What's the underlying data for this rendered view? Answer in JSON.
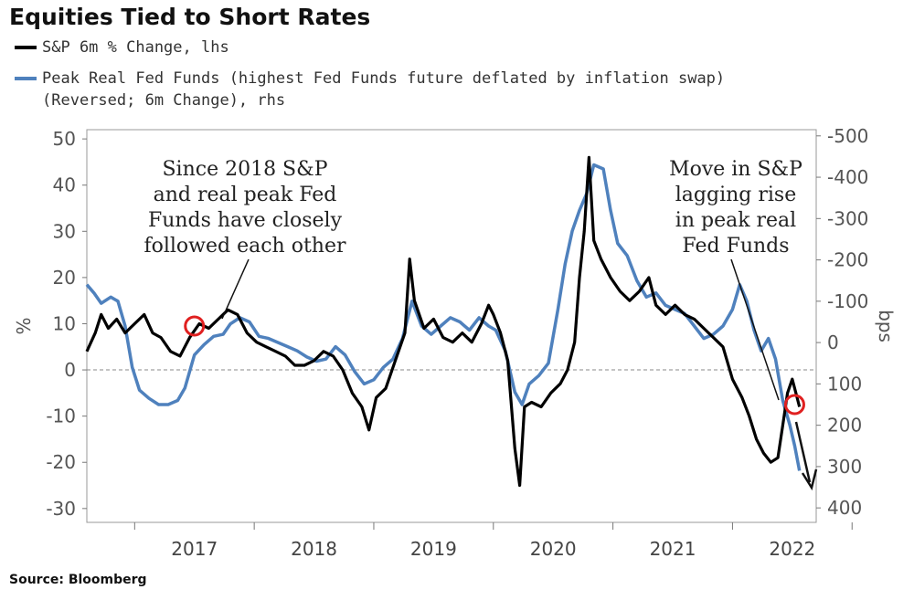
{
  "chart_data": {
    "type": "line",
    "title": "Equities Tied to Short Rates",
    "source": "Source: Bloomberg",
    "legend": [
      {
        "name": "S&P 6m % Change, lhs",
        "color": "#000000"
      },
      {
        "name": "Peak Real Fed Funds (highest Fed Funds future deflated by inflation swap)",
        "name_line2": "(Reversed; 6m Change), rhs",
        "color": "#4f81bd"
      }
    ],
    "x_ticks": [
      "2017",
      "2018",
      "2019",
      "2020",
      "2021",
      "2022"
    ],
    "x_range": [
      2016.6,
      2022.7
    ],
    "y_left": {
      "label": "%",
      "range": [
        -33,
        52
      ],
      "ticks": [
        "50",
        "40",
        "30",
        "20",
        "10",
        "0",
        "-10",
        "-20",
        "-30"
      ]
    },
    "y_right": {
      "label": "bps",
      "reversed": true,
      "range": [
        -515,
        435
      ],
      "ticks": [
        "-500",
        "-400",
        "-300",
        "-200",
        "-100",
        "0",
        "100",
        "200",
        "300",
        "400"
      ]
    },
    "annotations": {
      "left": [
        "Since 2018 S&P",
        "and real peak Fed",
        "Funds have closely",
        "followed each other"
      ],
      "right": [
        "Move in S&P",
        "lagging rise",
        "in peak real",
        "Fed Funds"
      ]
    },
    "series": [
      {
        "name": "S&P 6m % Change",
        "axis": "left",
        "color": "#000000",
        "points": [
          [
            2016.6,
            4
          ],
          [
            2016.67,
            8
          ],
          [
            2016.72,
            12
          ],
          [
            2016.78,
            9
          ],
          [
            2016.85,
            11
          ],
          [
            2016.92,
            8
          ],
          [
            2017.0,
            10
          ],
          [
            2017.08,
            12
          ],
          [
            2017.15,
            8
          ],
          [
            2017.22,
            7
          ],
          [
            2017.3,
            4
          ],
          [
            2017.38,
            3
          ],
          [
            2017.46,
            7
          ],
          [
            2017.54,
            10
          ],
          [
            2017.62,
            9
          ],
          [
            2017.7,
            11
          ],
          [
            2017.78,
            13
          ],
          [
            2017.86,
            12
          ],
          [
            2017.94,
            8
          ],
          [
            2018.02,
            6
          ],
          [
            2018.1,
            5
          ],
          [
            2018.18,
            4
          ],
          [
            2018.26,
            3
          ],
          [
            2018.34,
            1
          ],
          [
            2018.42,
            1
          ],
          [
            2018.5,
            2
          ],
          [
            2018.58,
            4
          ],
          [
            2018.66,
            3
          ],
          [
            2018.74,
            0
          ],
          [
            2018.82,
            -5
          ],
          [
            2018.9,
            -8
          ],
          [
            2018.96,
            -13
          ],
          [
            2019.02,
            -6
          ],
          [
            2019.1,
            -4
          ],
          [
            2019.18,
            2
          ],
          [
            2019.26,
            8
          ],
          [
            2019.3,
            24
          ],
          [
            2019.34,
            15
          ],
          [
            2019.42,
            9
          ],
          [
            2019.5,
            11
          ],
          [
            2019.58,
            7
          ],
          [
            2019.66,
            6
          ],
          [
            2019.74,
            8
          ],
          [
            2019.82,
            6
          ],
          [
            2019.9,
            10
          ],
          [
            2019.96,
            14
          ],
          [
            2020.0,
            12
          ],
          [
            2020.06,
            8
          ],
          [
            2020.12,
            2
          ],
          [
            2020.18,
            -17
          ],
          [
            2020.22,
            -25
          ],
          [
            2020.26,
            -8
          ],
          [
            2020.32,
            -7
          ],
          [
            2020.4,
            -8
          ],
          [
            2020.48,
            -5
          ],
          [
            2020.56,
            -3
          ],
          [
            2020.62,
            0
          ],
          [
            2020.68,
            6
          ],
          [
            2020.72,
            20
          ],
          [
            2020.76,
            30
          ],
          [
            2020.8,
            46
          ],
          [
            2020.84,
            28
          ],
          [
            2020.9,
            24
          ],
          [
            2020.98,
            20
          ],
          [
            2021.06,
            17
          ],
          [
            2021.14,
            15
          ],
          [
            2021.22,
            17
          ],
          [
            2021.3,
            20
          ],
          [
            2021.36,
            14
          ],
          [
            2021.44,
            12
          ],
          [
            2021.52,
            14
          ],
          [
            2021.6,
            12
          ],
          [
            2021.68,
            11
          ],
          [
            2021.76,
            9
          ],
          [
            2021.84,
            7
          ],
          [
            2021.92,
            5
          ],
          [
            2022.0,
            -2
          ],
          [
            2022.08,
            -6
          ],
          [
            2022.14,
            -10
          ],
          [
            2022.2,
            -15
          ],
          [
            2022.26,
            -18
          ],
          [
            2022.32,
            -20
          ],
          [
            2022.38,
            -19
          ],
          [
            2022.42,
            -12
          ],
          [
            2022.46,
            -5
          ],
          [
            2022.5,
            -2
          ],
          [
            2022.53,
            -5
          ],
          [
            2022.56,
            -8
          ]
        ]
      },
      {
        "name": "Peak Real Fed Funds (Reversed; 6m Change)",
        "axis": "right",
        "color": "#4f81bd",
        "points": [
          [
            2016.6,
            -140
          ],
          [
            2016.66,
            -120
          ],
          [
            2016.72,
            -95
          ],
          [
            2016.8,
            -110
          ],
          [
            2016.86,
            -100
          ],
          [
            2016.92,
            -40
          ],
          [
            2016.98,
            60
          ],
          [
            2017.04,
            115
          ],
          [
            2017.12,
            135
          ],
          [
            2017.2,
            150
          ],
          [
            2017.28,
            150
          ],
          [
            2017.36,
            140
          ],
          [
            2017.42,
            110
          ],
          [
            2017.5,
            30
          ],
          [
            2017.58,
            5
          ],
          [
            2017.66,
            -15
          ],
          [
            2017.74,
            -20
          ],
          [
            2017.8,
            -45
          ],
          [
            2017.88,
            -60
          ],
          [
            2017.96,
            -50
          ],
          [
            2018.04,
            -15
          ],
          [
            2018.12,
            -10
          ],
          [
            2018.2,
            0
          ],
          [
            2018.28,
            10
          ],
          [
            2018.36,
            20
          ],
          [
            2018.44,
            35
          ],
          [
            2018.52,
            45
          ],
          [
            2018.6,
            40
          ],
          [
            2018.68,
            10
          ],
          [
            2018.76,
            30
          ],
          [
            2018.84,
            70
          ],
          [
            2018.92,
            100
          ],
          [
            2019.0,
            90
          ],
          [
            2019.08,
            60
          ],
          [
            2019.16,
            40
          ],
          [
            2019.24,
            -10
          ],
          [
            2019.32,
            -100
          ],
          [
            2019.4,
            -40
          ],
          [
            2019.48,
            -20
          ],
          [
            2019.56,
            -40
          ],
          [
            2019.64,
            -60
          ],
          [
            2019.72,
            -50
          ],
          [
            2019.8,
            -30
          ],
          [
            2019.88,
            -60
          ],
          [
            2019.96,
            -40
          ],
          [
            2020.02,
            -30
          ],
          [
            2020.1,
            20
          ],
          [
            2020.18,
            120
          ],
          [
            2020.24,
            150
          ],
          [
            2020.3,
            100
          ],
          [
            2020.38,
            80
          ],
          [
            2020.46,
            50
          ],
          [
            2020.54,
            -80
          ],
          [
            2020.6,
            -190
          ],
          [
            2020.66,
            -270
          ],
          [
            2020.72,
            -320
          ],
          [
            2020.78,
            -360
          ],
          [
            2020.84,
            -430
          ],
          [
            2020.92,
            -420
          ],
          [
            2020.98,
            -320
          ],
          [
            2021.04,
            -240
          ],
          [
            2021.12,
            -210
          ],
          [
            2021.2,
            -150
          ],
          [
            2021.28,
            -110
          ],
          [
            2021.36,
            -120
          ],
          [
            2021.44,
            -90
          ],
          [
            2021.52,
            -80
          ],
          [
            2021.6,
            -70
          ],
          [
            2021.68,
            -40
          ],
          [
            2021.76,
            -10
          ],
          [
            2021.84,
            -20
          ],
          [
            2021.92,
            -40
          ],
          [
            2022.0,
            -80
          ],
          [
            2022.06,
            -140
          ],
          [
            2022.12,
            -100
          ],
          [
            2022.18,
            -30
          ],
          [
            2022.24,
            20
          ],
          [
            2022.3,
            -10
          ],
          [
            2022.36,
            40
          ],
          [
            2022.42,
            140
          ],
          [
            2022.48,
            200
          ],
          [
            2022.52,
            250
          ],
          [
            2022.56,
            310
          ]
        ]
      }
    ]
  }
}
